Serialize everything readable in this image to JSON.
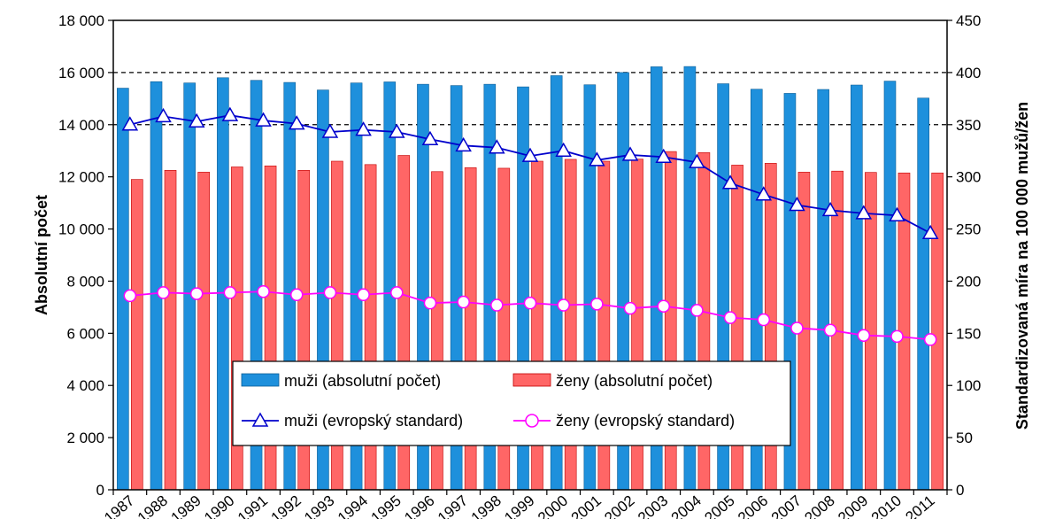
{
  "chart_data": {
    "type": "bar",
    "categories": [
      "1987",
      "1988",
      "1989",
      "1990",
      "1991",
      "1992",
      "1993",
      "1994",
      "1995",
      "1996",
      "1997",
      "1998",
      "1999",
      "2000",
      "2001",
      "2002",
      "2003",
      "2004",
      "2005",
      "2006",
      "2007",
      "2008",
      "2009",
      "2010",
      "2011"
    ],
    "ylabel": "Absolutní počet",
    "y2label": "Standardizovaná míra na 100 000 mužů/žen",
    "ylim": [
      0,
      18000
    ],
    "y2lim": [
      0,
      450
    ],
    "yticks": [
      "0",
      "2 000",
      "4 000",
      "6 000",
      "8 000",
      "10 000",
      "12 000",
      "14 000",
      "16 000",
      "18 000"
    ],
    "y2ticks": [
      "0",
      "50",
      "100",
      "150",
      "200",
      "250",
      "300",
      "350",
      "400",
      "450"
    ],
    "grid": "dashed horizontal at upper values",
    "legend_position": "bottom-center inside plot",
    "series": [
      {
        "name": "muži (absolutní počet)",
        "kind": "bar",
        "axis": "left",
        "color": "#1e90dc",
        "values": [
          15400,
          15650,
          15600,
          15800,
          15700,
          15620,
          15330,
          15600,
          15640,
          15550,
          15500,
          15550,
          15450,
          15880,
          15530,
          16000,
          16220,
          16230,
          15570,
          15360,
          15200,
          15350,
          15520,
          15670,
          15020
        ]
      },
      {
        "name": "ženy (absolutní počet)",
        "kind": "bar",
        "axis": "left",
        "color": "#ff6666",
        "values": [
          11900,
          12250,
          12180,
          12380,
          12420,
          12250,
          12600,
          12470,
          12820,
          12200,
          12350,
          12330,
          12600,
          12670,
          12600,
          12680,
          12970,
          12930,
          12450,
          12520,
          12180,
          12220,
          12170,
          12150,
          12150
        ]
      },
      {
        "name": "muži (evropský standard)",
        "kind": "line",
        "axis": "right",
        "color": "#0000cc",
        "marker": "triangle",
        "values": [
          350,
          358,
          353,
          359,
          354,
          351,
          343,
          345,
          343,
          336,
          330,
          328,
          320,
          325,
          316,
          321,
          319,
          314,
          294,
          283,
          273,
          268,
          265,
          263,
          246
        ]
      },
      {
        "name": "ženy (evropský standard)",
        "kind": "line",
        "axis": "right",
        "color": "#ff00ff",
        "marker": "circle",
        "values": [
          186,
          189,
          188,
          189,
          190,
          187,
          189,
          187,
          189,
          179,
          180,
          177,
          179,
          177,
          178,
          174,
          176,
          172,
          165,
          163,
          155,
          153,
          148,
          147,
          144
        ]
      }
    ]
  }
}
